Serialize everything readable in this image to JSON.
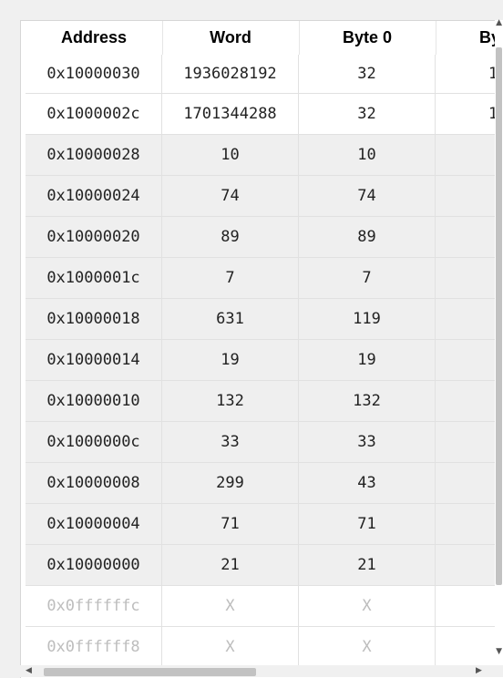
{
  "columns": {
    "address": "Address",
    "word": "Word",
    "byte0": "Byte 0",
    "byte1_partial": "By"
  },
  "rows": [
    {
      "address": "0x10000030",
      "word": "1936028192",
      "byte0": "32",
      "byte1": "1"
    },
    {
      "address": "0x1000002c",
      "word": "1701344288",
      "byte0": "32",
      "byte1": "1"
    },
    {
      "address": "0x10000028",
      "word": "10",
      "byte0": "10",
      "byte1": ""
    },
    {
      "address": "0x10000024",
      "word": "74",
      "byte0": "74",
      "byte1": ""
    },
    {
      "address": "0x10000020",
      "word": "89",
      "byte0": "89",
      "byte1": ""
    },
    {
      "address": "0x1000001c",
      "word": "7",
      "byte0": "7",
      "byte1": ""
    },
    {
      "address": "0x10000018",
      "word": "631",
      "byte0": "119",
      "byte1": ""
    },
    {
      "address": "0x10000014",
      "word": "19",
      "byte0": "19",
      "byte1": ""
    },
    {
      "address": "0x10000010",
      "word": "132",
      "byte0": "132",
      "byte1": ""
    },
    {
      "address": "0x1000000c",
      "word": "33",
      "byte0": "33",
      "byte1": ""
    },
    {
      "address": "0x10000008",
      "word": "299",
      "byte0": "43",
      "byte1": ""
    },
    {
      "address": "0x10000004",
      "word": "71",
      "byte0": "71",
      "byte1": ""
    },
    {
      "address": "0x10000000",
      "word": "21",
      "byte0": "21",
      "byte1": ""
    },
    {
      "address": "0x0ffffffc",
      "word": "X",
      "byte0": "X",
      "byte1": ""
    },
    {
      "address": "0x0ffffff8",
      "word": "X",
      "byte0": "X",
      "byte1": ""
    }
  ],
  "scrollbars": {
    "up_arrow": "▲",
    "down_arrow": "▼",
    "left_arrow": "◀",
    "right_arrow": "▶"
  }
}
